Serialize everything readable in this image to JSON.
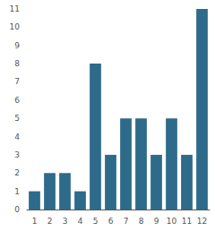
{
  "chart_data": {
    "type": "bar",
    "categories": [
      1,
      2,
      3,
      4,
      5,
      6,
      7,
      8,
      9,
      10,
      11,
      12
    ],
    "values": [
      1,
      2,
      2,
      1,
      8,
      3,
      5,
      5,
      3,
      5,
      3,
      11
    ],
    "color": "#2e6b8a",
    "ylim": [
      0,
      11
    ],
    "yticks": [
      0,
      1,
      2,
      3,
      4,
      5,
      6,
      7,
      8,
      9,
      10,
      11
    ],
    "grid": false
  }
}
